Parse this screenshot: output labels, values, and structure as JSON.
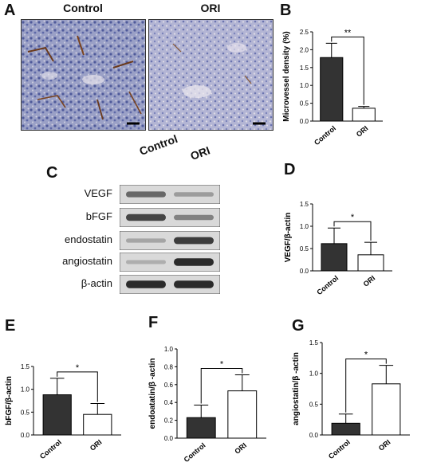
{
  "panels": {
    "A": "A",
    "B": "B",
    "C": "C",
    "D": "D",
    "E": "E",
    "F": "F",
    "G": "G"
  },
  "histology": {
    "left_title": "Control",
    "right_title": "ORI"
  },
  "western_blot": {
    "columns": [
      "Control",
      "ORI"
    ],
    "bands": [
      {
        "label": "VEGF",
        "control": 0.55,
        "ori": 0.25
      },
      {
        "label": "bFGF",
        "control": 0.75,
        "ori": 0.4
      },
      {
        "label": "endostatin",
        "control": 0.2,
        "ori": 0.8
      },
      {
        "label": "angiostatin",
        "control": 0.15,
        "ori": 0.9
      },
      {
        "label": "β-actin",
        "control": 0.9,
        "ori": 0.9
      }
    ]
  },
  "colors": {
    "control_bar": "#333333",
    "ori_bar": "#ffffff",
    "axis": "#000000"
  },
  "chart_data": [
    {
      "panel": "B",
      "type": "bar",
      "categories": [
        "Control",
        "ORI"
      ],
      "values": [
        1.78,
        0.36
      ],
      "errors": [
        0.4,
        0.05
      ],
      "ylabel": "Microvessel density (%)",
      "ylim": [
        0,
        2.5
      ],
      "yticks": [
        "0.0",
        "0.5",
        "1.0",
        "1.5",
        "2.0",
        "2.5"
      ],
      "significance": "**"
    },
    {
      "panel": "D",
      "type": "bar",
      "categories": [
        "Control",
        "ORI"
      ],
      "values": [
        0.61,
        0.36
      ],
      "errors": [
        0.35,
        0.28
      ],
      "ylabel": "VEGF/β-actin",
      "ylim": [
        0,
        1.5
      ],
      "yticks": [
        "0.0",
        "0.5",
        "1.0",
        "1.5"
      ],
      "significance": "*"
    },
    {
      "panel": "E",
      "type": "bar",
      "categories": [
        "Control",
        "ORI"
      ],
      "values": [
        0.88,
        0.45
      ],
      "errors": [
        0.36,
        0.24
      ],
      "ylabel": "bFGF/β-actin",
      "ylim": [
        0,
        1.5
      ],
      "yticks": [
        "0.0",
        "0.5",
        "1.0",
        "1.5"
      ],
      "significance": "*"
    },
    {
      "panel": "F",
      "type": "bar",
      "categories": [
        "Control",
        "ORI"
      ],
      "values": [
        0.23,
        0.53
      ],
      "errors": [
        0.14,
        0.18
      ],
      "ylabel": "endoatatin/β -actin",
      "ylim": [
        0,
        1.0
      ],
      "yticks": [
        "0.0",
        "0.2",
        "0.4",
        "0.6",
        "0.8",
        "1.0"
      ],
      "significance": "*"
    },
    {
      "panel": "G",
      "type": "bar",
      "categories": [
        "Control",
        "ORI"
      ],
      "values": [
        0.19,
        0.83
      ],
      "errors": [
        0.15,
        0.3
      ],
      "ylabel": "angiostatin/β -actin",
      "ylim": [
        0,
        1.5
      ],
      "yticks": [
        "0.0",
        "0.5",
        "1.0",
        "1.5"
      ],
      "significance": "*"
    }
  ]
}
